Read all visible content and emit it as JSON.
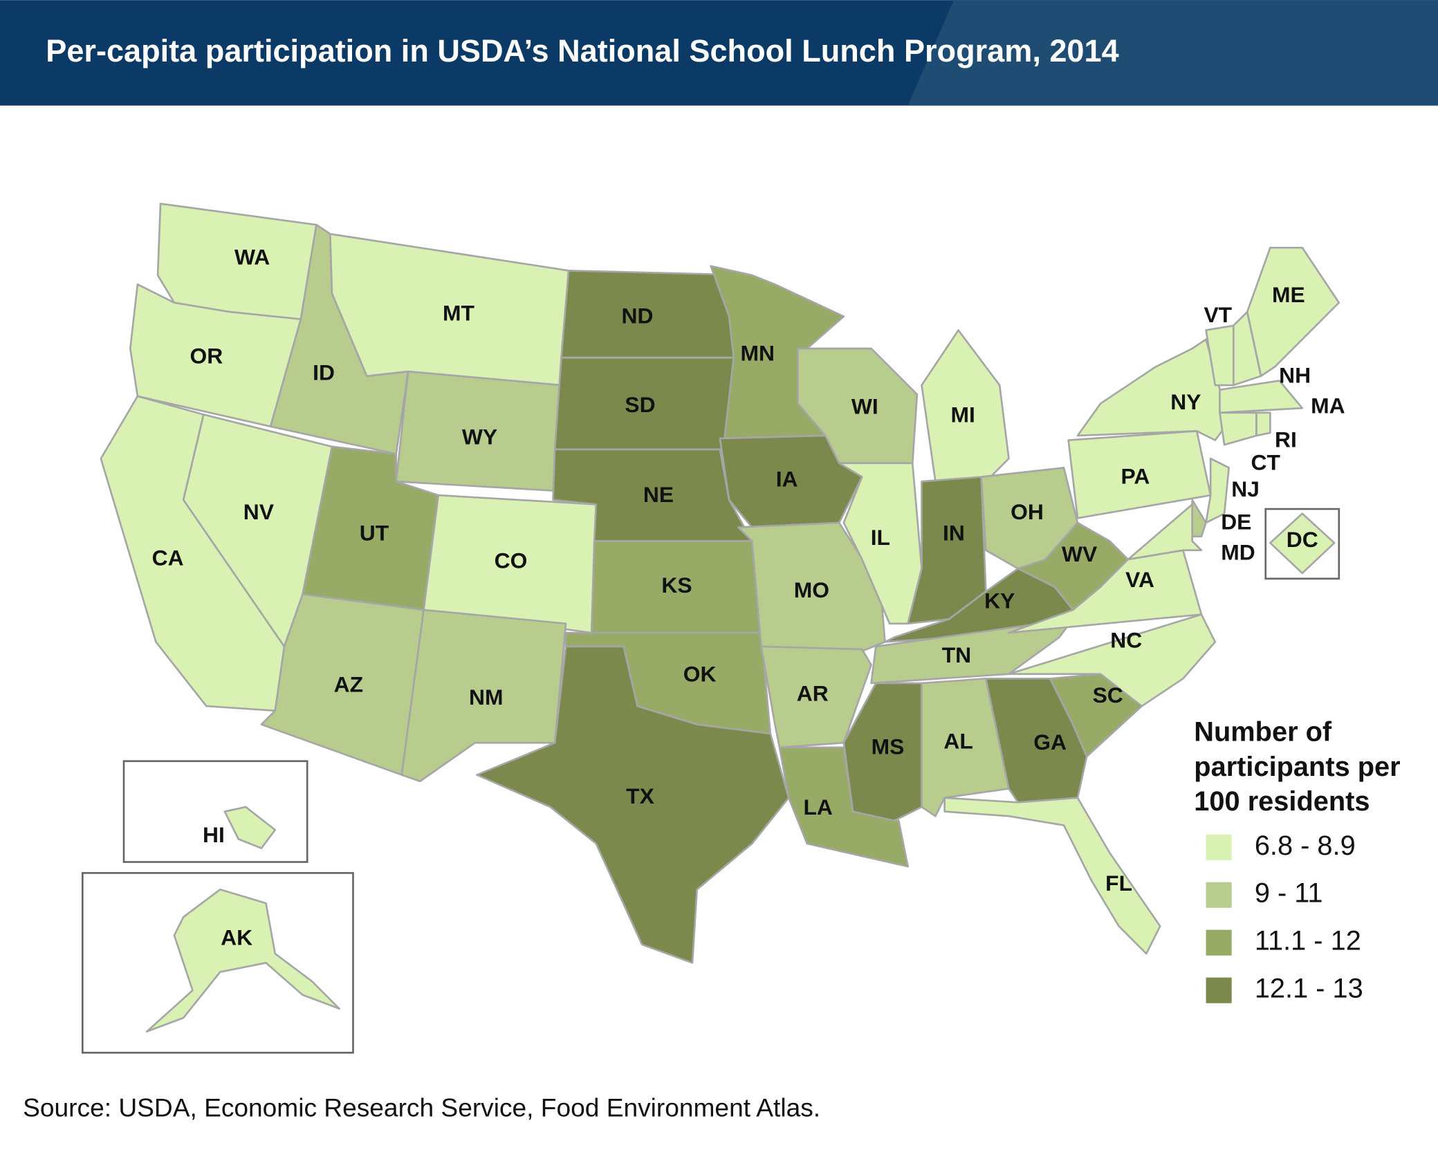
{
  "title": "Per-capita participation in USDA’s National School Lunch Program, 2014",
  "source": "Source: USDA, Economic Research Service, Food Environment Atlas.",
  "legend": {
    "title": [
      "Number of",
      "participants per",
      "100 residents"
    ],
    "entries": [
      {
        "label": "6.8 - 8.9",
        "color": "#d9f2b3"
      },
      {
        "label": "9 - 11",
        "color": "#b8cc8e"
      },
      {
        "label": "11.1 - 12",
        "color": "#97aa66"
      },
      {
        "label": "12.1 - 13",
        "color": "#7b8a4c"
      }
    ]
  },
  "states": [
    {
      "label": "WA",
      "color": "#d9f2b3"
    },
    {
      "label": "OR",
      "color": "#d9f2b3"
    },
    {
      "label": "CA",
      "color": "#d9f2b3"
    },
    {
      "label": "NV",
      "color": "#d9f2b3"
    },
    {
      "label": "ID",
      "color": "#b8cc8e"
    },
    {
      "label": "MT",
      "color": "#d9f2b3"
    },
    {
      "label": "WY",
      "color": "#b8cc8e"
    },
    {
      "label": "UT",
      "color": "#97aa66"
    },
    {
      "label": "CO",
      "color": "#d9f2b3"
    },
    {
      "label": "AZ",
      "color": "#b8cc8e"
    },
    {
      "label": "NM",
      "color": "#b8cc8e"
    },
    {
      "label": "ND",
      "color": "#7b8a4c"
    },
    {
      "label": "SD",
      "color": "#7b8a4c"
    },
    {
      "label": "NE",
      "color": "#7b8a4c"
    },
    {
      "label": "KS",
      "color": "#97aa66"
    },
    {
      "label": "OK",
      "color": "#97aa66"
    },
    {
      "label": "TX",
      "color": "#7b8a4c"
    },
    {
      "label": "MN",
      "color": "#97aa66"
    },
    {
      "label": "IA",
      "color": "#7b8a4c"
    },
    {
      "label": "MO",
      "color": "#b8cc8e"
    },
    {
      "label": "AR",
      "color": "#b8cc8e"
    },
    {
      "label": "LA",
      "color": "#97aa66"
    },
    {
      "label": "WI",
      "color": "#b8cc8e"
    },
    {
      "label": "IL",
      "color": "#d9f2b3"
    },
    {
      "label": "MI",
      "color": "#d9f2b3"
    },
    {
      "label": "IN",
      "color": "#7b8a4c"
    },
    {
      "label": "OH",
      "color": "#b8cc8e"
    },
    {
      "label": "KY",
      "color": "#7b8a4c"
    },
    {
      "label": "TN",
      "color": "#b8cc8e"
    },
    {
      "label": "MS",
      "color": "#7b8a4c"
    },
    {
      "label": "AL",
      "color": "#b8cc8e"
    },
    {
      "label": "GA",
      "color": "#7b8a4c"
    },
    {
      "label": "FL",
      "color": "#d9f2b3"
    },
    {
      "label": "SC",
      "color": "#97aa66"
    },
    {
      "label": "NC",
      "color": "#d9f2b3"
    },
    {
      "label": "VA",
      "color": "#d9f2b3"
    },
    {
      "label": "WV",
      "color": "#97aa66"
    },
    {
      "label": "PA",
      "color": "#d9f2b3"
    },
    {
      "label": "NY",
      "color": "#d9f2b3"
    },
    {
      "label": "VT",
      "color": "#d9f2b3"
    },
    {
      "label": "NH",
      "color": "#d9f2b3"
    },
    {
      "label": "ME",
      "color": "#d9f2b3"
    },
    {
      "label": "MA",
      "color": "#d9f2b3"
    },
    {
      "label": "CT",
      "color": "#d9f2b3"
    },
    {
      "label": "RI",
      "color": "#d9f2b3"
    },
    {
      "label": "NJ",
      "color": "#d9f2b3"
    },
    {
      "label": "DE",
      "color": "#b8cc8e"
    },
    {
      "label": "MD",
      "color": "#d9f2b3"
    },
    {
      "label": "DC",
      "color": "#d9f2b3"
    },
    {
      "label": "HI",
      "color": "#d9f2b3"
    },
    {
      "label": "AK",
      "color": "#d9f2b3"
    }
  ]
}
